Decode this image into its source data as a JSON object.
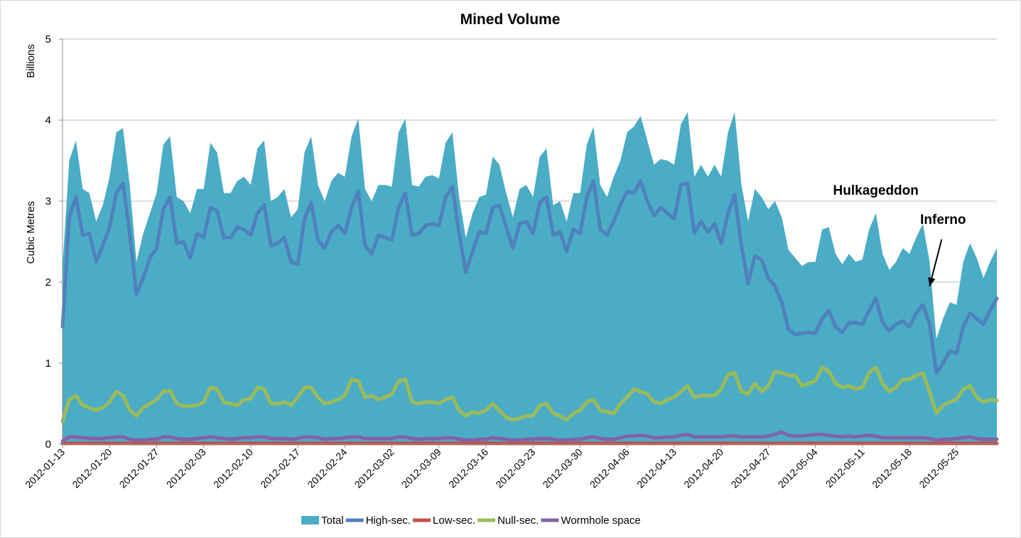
{
  "chart_data": {
    "type": "area",
    "title": "Mined Volume",
    "ylabel": "Cubic Metres",
    "yunit_label": "Billions",
    "xlabel": "",
    "ylim": [
      0,
      5
    ],
    "yticks": [
      "0",
      "1",
      "2",
      "3",
      "4",
      "5"
    ],
    "grid": true,
    "legend_position": "bottom",
    "x_start": "2012-01-13",
    "x_end": "2012-05-31",
    "xtick_labels": [
      "2012-01-13",
      "2012-01-20",
      "2012-01-27",
      "2012-02-03",
      "2012-02-10",
      "2012-02-17",
      "2012-02-24",
      "2012-03-02",
      "2012-03-09",
      "2012-03-16",
      "2012-03-23",
      "2012-03-30",
      "2012-04-06",
      "2012-04-13",
      "2012-04-20",
      "2012-04-27",
      "2012-05-04",
      "2012-05-11",
      "2012-05-18",
      "2012-05-25"
    ],
    "series": [
      {
        "name": "Total",
        "type": "area",
        "color": "#4bacc6",
        "values": [
          2.2,
          3.5,
          3.75,
          3.15,
          3.1,
          2.75,
          2.95,
          3.3,
          3.85,
          3.9,
          3.2,
          2.25,
          2.6,
          2.85,
          3.1,
          3.7,
          3.8,
          3.05,
          3.0,
          2.85,
          3.15,
          3.15,
          3.72,
          3.6,
          3.1,
          3.1,
          3.25,
          3.3,
          3.2,
          3.65,
          3.75,
          3.0,
          3.05,
          3.15,
          2.8,
          2.9,
          3.6,
          3.8,
          3.2,
          3.0,
          3.25,
          3.35,
          3.3,
          3.8,
          4.02,
          3.15,
          3.0,
          3.2,
          3.2,
          3.18,
          3.85,
          4.02,
          3.2,
          3.18,
          3.3,
          3.32,
          3.28,
          3.72,
          3.85,
          3.05,
          2.55,
          2.85,
          3.05,
          3.08,
          3.55,
          3.45,
          3.1,
          2.8,
          3.15,
          3.2,
          3.05,
          3.55,
          3.65,
          2.95,
          3.0,
          2.75,
          3.1,
          3.1,
          3.7,
          3.92,
          3.2,
          3.05,
          3.3,
          3.5,
          3.85,
          3.92,
          4.05,
          3.75,
          3.45,
          3.52,
          3.5,
          3.45,
          3.95,
          4.1,
          3.3,
          3.45,
          3.3,
          3.45,
          3.3,
          3.85,
          4.1,
          3.2,
          2.75,
          3.15,
          3.05,
          2.9,
          3.0,
          2.8,
          2.4,
          2.3,
          2.2,
          2.25,
          2.25,
          2.65,
          2.68,
          2.35,
          2.22,
          2.35,
          2.25,
          2.28,
          2.65,
          2.85,
          2.35,
          2.15,
          2.25,
          2.42,
          2.35,
          2.55,
          2.72,
          2.25,
          1.3,
          1.55,
          1.75,
          1.72,
          2.25,
          2.48,
          2.3,
          2.05,
          2.25,
          2.42
        ]
      },
      {
        "name": "High-sec.",
        "type": "line",
        "color": "#4f81bd",
        "values": [
          1.45,
          2.8,
          3.05,
          2.58,
          2.6,
          2.25,
          2.45,
          2.68,
          3.1,
          3.22,
          2.6,
          1.85,
          2.05,
          2.3,
          2.42,
          2.9,
          3.05,
          2.48,
          2.5,
          2.3,
          2.6,
          2.55,
          2.92,
          2.88,
          2.55,
          2.55,
          2.68,
          2.65,
          2.58,
          2.85,
          2.95,
          2.45,
          2.48,
          2.55,
          2.25,
          2.22,
          2.78,
          2.98,
          2.52,
          2.42,
          2.62,
          2.7,
          2.6,
          2.92,
          3.12,
          2.45,
          2.35,
          2.58,
          2.55,
          2.52,
          2.92,
          3.1,
          2.58,
          2.6,
          2.7,
          2.72,
          2.7,
          3.05,
          3.18,
          2.6,
          2.12,
          2.38,
          2.62,
          2.6,
          2.92,
          2.95,
          2.68,
          2.42,
          2.72,
          2.75,
          2.6,
          2.98,
          3.05,
          2.58,
          2.62,
          2.38,
          2.65,
          2.6,
          3.05,
          3.25,
          2.65,
          2.58,
          2.75,
          2.95,
          3.12,
          3.1,
          3.25,
          3.0,
          2.82,
          2.92,
          2.85,
          2.78,
          3.2,
          3.22,
          2.6,
          2.75,
          2.62,
          2.72,
          2.48,
          2.85,
          3.08,
          2.45,
          1.98,
          2.32,
          2.28,
          2.05,
          1.95,
          1.75,
          1.42,
          1.35,
          1.37,
          1.38,
          1.37,
          1.55,
          1.65,
          1.45,
          1.38,
          1.5,
          1.5,
          1.48,
          1.65,
          1.8,
          1.5,
          1.4,
          1.48,
          1.52,
          1.45,
          1.62,
          1.72,
          1.48,
          0.88,
          1.0,
          1.15,
          1.12,
          1.45,
          1.62,
          1.55,
          1.48,
          1.65,
          1.8
        ]
      },
      {
        "name": "Low-sec.",
        "type": "line",
        "color": "#c0504d",
        "values": [
          0.01,
          0.01,
          0.01,
          0.01,
          0.01,
          0.01,
          0.01,
          0.01,
          0.01,
          0.01,
          0.01,
          0.01,
          0.01,
          0.01,
          0.01,
          0.01,
          0.01,
          0.01,
          0.01,
          0.01,
          0.01,
          0.01,
          0.01,
          0.01,
          0.01,
          0.01,
          0.01,
          0.01,
          0.01,
          0.01,
          0.01,
          0.01,
          0.01,
          0.01,
          0.01,
          0.01,
          0.01,
          0.01,
          0.01,
          0.01,
          0.01,
          0.01,
          0.01,
          0.01,
          0.01,
          0.01,
          0.01,
          0.01,
          0.01,
          0.01,
          0.01,
          0.01,
          0.01,
          0.01,
          0.01,
          0.01,
          0.01,
          0.01,
          0.01,
          0.01,
          0.01,
          0.01,
          0.01,
          0.01,
          0.01,
          0.01,
          0.01,
          0.01,
          0.01,
          0.01,
          0.01,
          0.01,
          0.01,
          0.01,
          0.01,
          0.01,
          0.01,
          0.01,
          0.01,
          0.01,
          0.01,
          0.01,
          0.01,
          0.01,
          0.01,
          0.01,
          0.01,
          0.01,
          0.01,
          0.01,
          0.01,
          0.01,
          0.01,
          0.01,
          0.01,
          0.01,
          0.01,
          0.01,
          0.01,
          0.01,
          0.01,
          0.01,
          0.01,
          0.01,
          0.01,
          0.01,
          0.01,
          0.01,
          0.01,
          0.01,
          0.01,
          0.01,
          0.01,
          0.01,
          0.01,
          0.01,
          0.01,
          0.01,
          0.01,
          0.01,
          0.01,
          0.01,
          0.01,
          0.01,
          0.01,
          0.01,
          0.01,
          0.01,
          0.01,
          0.01,
          0.01,
          0.01,
          0.01,
          0.01,
          0.01,
          0.01,
          0.01,
          0.01,
          0.01,
          0.01
        ]
      },
      {
        "name": "Null-sec.",
        "type": "line",
        "color": "#9bbb59",
        "values": [
          0.28,
          0.55,
          0.6,
          0.48,
          0.45,
          0.42,
          0.45,
          0.52,
          0.65,
          0.6,
          0.42,
          0.35,
          0.45,
          0.5,
          0.55,
          0.65,
          0.66,
          0.5,
          0.47,
          0.47,
          0.48,
          0.52,
          0.7,
          0.68,
          0.52,
          0.5,
          0.48,
          0.55,
          0.56,
          0.7,
          0.68,
          0.5,
          0.5,
          0.52,
          0.48,
          0.58,
          0.7,
          0.7,
          0.58,
          0.5,
          0.52,
          0.55,
          0.6,
          0.8,
          0.78,
          0.58,
          0.6,
          0.55,
          0.58,
          0.62,
          0.78,
          0.8,
          0.52,
          0.5,
          0.52,
          0.52,
          0.5,
          0.55,
          0.58,
          0.42,
          0.35,
          0.4,
          0.38,
          0.42,
          0.5,
          0.42,
          0.33,
          0.3,
          0.32,
          0.35,
          0.35,
          0.48,
          0.5,
          0.38,
          0.35,
          0.3,
          0.38,
          0.42,
          0.52,
          0.55,
          0.42,
          0.4,
          0.38,
          0.5,
          0.58,
          0.68,
          0.65,
          0.62,
          0.52,
          0.5,
          0.55,
          0.58,
          0.65,
          0.72,
          0.58,
          0.6,
          0.6,
          0.6,
          0.68,
          0.86,
          0.88,
          0.65,
          0.62,
          0.75,
          0.65,
          0.72,
          0.9,
          0.88,
          0.85,
          0.85,
          0.72,
          0.75,
          0.78,
          0.95,
          0.9,
          0.75,
          0.7,
          0.72,
          0.68,
          0.7,
          0.88,
          0.95,
          0.75,
          0.65,
          0.7,
          0.8,
          0.8,
          0.85,
          0.88,
          0.65,
          0.38,
          0.48,
          0.52,
          0.55,
          0.68,
          0.72,
          0.58,
          0.52,
          0.55,
          0.54
        ]
      },
      {
        "name": "Wormhole space",
        "type": "line",
        "color": "#8064a2",
        "values": [
          0.04,
          0.09,
          0.09,
          0.08,
          0.07,
          0.07,
          0.07,
          0.08,
          0.09,
          0.09,
          0.06,
          0.05,
          0.05,
          0.06,
          0.06,
          0.09,
          0.09,
          0.07,
          0.06,
          0.06,
          0.07,
          0.08,
          0.09,
          0.08,
          0.07,
          0.06,
          0.07,
          0.08,
          0.08,
          0.09,
          0.09,
          0.07,
          0.07,
          0.07,
          0.06,
          0.07,
          0.09,
          0.09,
          0.08,
          0.06,
          0.07,
          0.07,
          0.08,
          0.09,
          0.09,
          0.07,
          0.07,
          0.07,
          0.07,
          0.07,
          0.09,
          0.09,
          0.07,
          0.06,
          0.07,
          0.07,
          0.07,
          0.08,
          0.08,
          0.06,
          0.05,
          0.05,
          0.06,
          0.06,
          0.08,
          0.07,
          0.06,
          0.05,
          0.05,
          0.06,
          0.06,
          0.07,
          0.07,
          0.06,
          0.05,
          0.05,
          0.06,
          0.06,
          0.08,
          0.09,
          0.07,
          0.06,
          0.06,
          0.08,
          0.1,
          0.1,
          0.11,
          0.1,
          0.08,
          0.08,
          0.09,
          0.09,
          0.11,
          0.12,
          0.09,
          0.09,
          0.09,
          0.09,
          0.09,
          0.1,
          0.1,
          0.09,
          0.09,
          0.09,
          0.09,
          0.1,
          0.12,
          0.15,
          0.11,
          0.1,
          0.1,
          0.11,
          0.12,
          0.12,
          0.11,
          0.1,
          0.09,
          0.1,
          0.09,
          0.1,
          0.11,
          0.1,
          0.08,
          0.08,
          0.08,
          0.08,
          0.08,
          0.08,
          0.08,
          0.07,
          0.05,
          0.06,
          0.06,
          0.07,
          0.08,
          0.09,
          0.07,
          0.06,
          0.06,
          0.06
        ]
      }
    ],
    "annotations": [
      {
        "text": "Hulkageddon",
        "x": "2012-05-13",
        "y": 3.08
      },
      {
        "text": "Inferno",
        "x": "2012-05-23",
        "y": 2.72,
        "arrow_to": {
          "x": "2012-05-21",
          "y": 1.95
        }
      }
    ]
  }
}
